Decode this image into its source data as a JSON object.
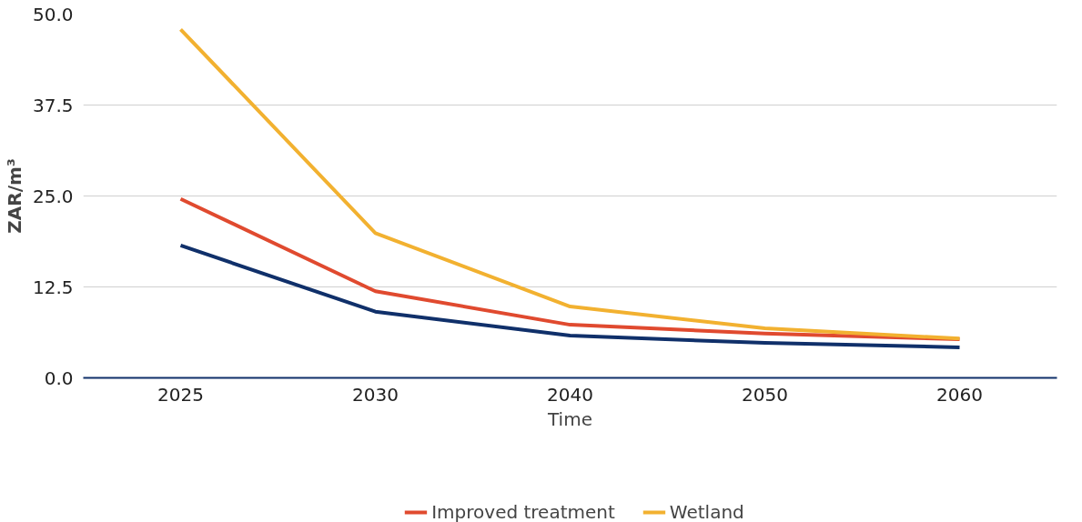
{
  "chart_data": {
    "type": "line",
    "xlabel": "Time",
    "ylabel": "ZAR/m³",
    "categories": [
      "2025",
      "2030",
      "2040",
      "2050",
      "2060"
    ],
    "ylim": [
      0,
      50
    ],
    "yticks": [
      {
        "value": 0,
        "label": "0.0"
      },
      {
        "value": 12.5,
        "label": "12.5"
      },
      {
        "value": 25,
        "label": "25.0"
      },
      {
        "value": 37.5,
        "label": "37.5"
      },
      {
        "value": 50,
        "label": "50.0"
      }
    ],
    "grid": "y",
    "legend": "bottom",
    "marker": "none",
    "line_style": "solid",
    "series": [
      {
        "name": "Improved treatment",
        "color": "#e04a2f",
        "values": [
          24.6,
          11.9,
          7.3,
          6.1,
          5.3
        ]
      },
      {
        "color": "#10306a",
        "values": [
          18.2,
          9.1,
          5.8,
          4.8,
          4.2
        ]
      },
      {
        "name": "Wetland",
        "color": "#f2b130",
        "values": [
          47.9,
          19.9,
          9.8,
          6.8,
          5.4
        ]
      }
    ]
  }
}
